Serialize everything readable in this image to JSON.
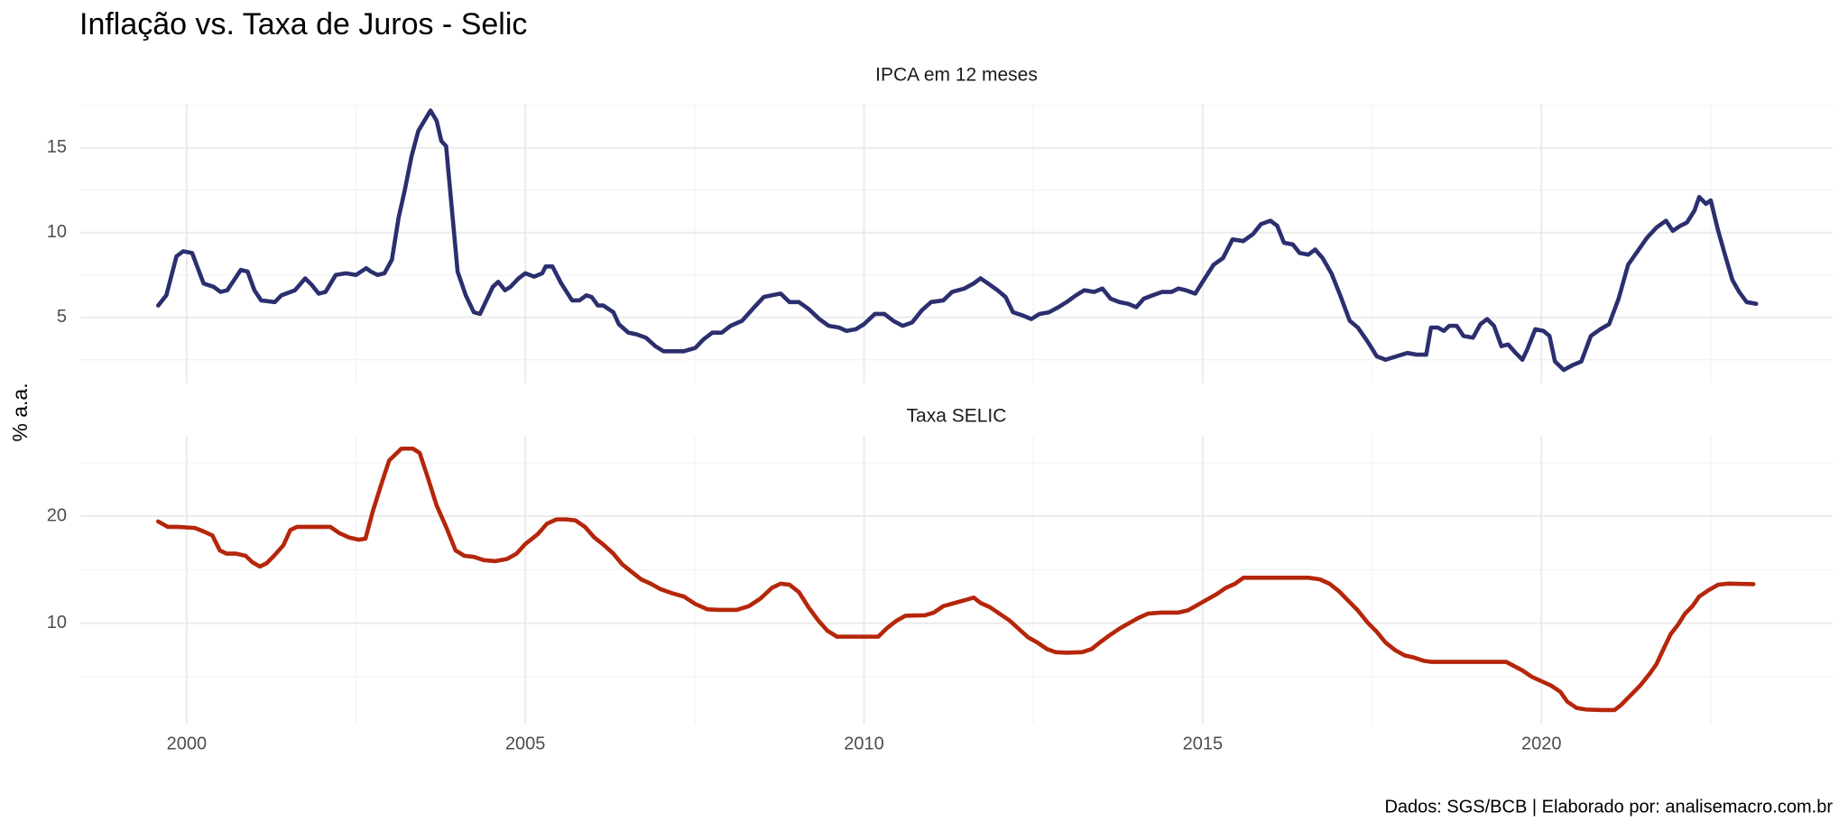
{
  "title": "Inflação vs. Taxa de Juros - Selic",
  "ylabel": "% a.a.",
  "caption": "Dados: SGS/BCB | Elaborado por: analisemacro.com.br",
  "chart_data": [
    {
      "type": "line",
      "title": "IPCA em 12 meses",
      "color": "#2b2f6e",
      "grid": true,
      "xlim": [
        1998.43,
        2024.3
      ],
      "xticks": [
        2000,
        2005,
        2010,
        2015,
        2020
      ],
      "ylim": [
        1.1,
        17.6
      ],
      "yticks": [
        5,
        10,
        15
      ],
      "x": [
        1999.58,
        1999.7,
        1999.85,
        1999.95,
        2000.08,
        2000.25,
        2000.4,
        2000.5,
        2000.6,
        2000.8,
        2000.9,
        2001.0,
        2001.1,
        2001.3,
        2001.4,
        2001.6,
        2001.75,
        2001.85,
        2001.95,
        2002.05,
        2002.2,
        2002.35,
        2002.5,
        2002.65,
        2002.72,
        2002.82,
        2002.92,
        2003.03,
        2003.13,
        2003.22,
        2003.32,
        2003.42,
        2003.51,
        2003.6,
        2003.69,
        2003.76,
        2003.83,
        2004.0,
        2004.12,
        2004.24,
        2004.33,
        2004.52,
        2004.6,
        2004.7,
        2004.78,
        2004.9,
        2005.0,
        2005.13,
        2005.25,
        2005.3,
        2005.4,
        2005.53,
        2005.69,
        2005.8,
        2005.9,
        2005.98,
        2006.07,
        2006.15,
        2006.3,
        2006.38,
        2006.52,
        2006.64,
        2006.78,
        2006.92,
        2007.04,
        2007.16,
        2007.34,
        2007.51,
        2007.63,
        2007.76,
        2007.9,
        2008.03,
        2008.2,
        2008.38,
        2008.52,
        2008.64,
        2008.77,
        2008.9,
        2009.04,
        2009.18,
        2009.34,
        2009.48,
        2009.63,
        2009.74,
        2009.88,
        2010.0,
        2010.16,
        2010.3,
        2010.43,
        2010.57,
        2010.71,
        2010.85,
        2010.99,
        2011.17,
        2011.3,
        2011.48,
        2011.62,
        2011.72,
        2011.83,
        2011.97,
        2012.09,
        2012.2,
        2012.35,
        2012.47,
        2012.59,
        2012.73,
        2012.87,
        2012.99,
        2013.13,
        2013.25,
        2013.4,
        2013.52,
        2013.64,
        2013.77,
        2013.9,
        2014.02,
        2014.13,
        2014.26,
        2014.4,
        2014.54,
        2014.64,
        2014.75,
        2014.89,
        2015.0,
        2015.16,
        2015.3,
        2015.44,
        2015.6,
        2015.74,
        2015.86,
        2016.0,
        2016.1,
        2016.2,
        2016.33,
        2016.43,
        2016.56,
        2016.66,
        2016.77,
        2016.9,
        2017.03,
        2017.17,
        2017.29,
        2017.43,
        2017.57,
        2017.7,
        2017.86,
        2018.02,
        2018.16,
        2018.3,
        2018.37,
        2018.47,
        2018.56,
        2018.64,
        2018.75,
        2018.85,
        2018.99,
        2019.1,
        2019.2,
        2019.3,
        2019.41,
        2019.51,
        2019.62,
        2019.72,
        2019.79,
        2019.91,
        2020.03,
        2020.12,
        2020.2,
        2020.33,
        2020.47,
        2020.59,
        2020.73,
        2020.87,
        2021.0,
        2021.14,
        2021.28,
        2021.42,
        2021.56,
        2021.7,
        2021.84,
        2021.94,
        2022.05,
        2022.15,
        2022.26,
        2022.33,
        2022.43,
        2022.5,
        2022.61,
        2022.71,
        2022.82,
        2022.92,
        2023.03,
        2023.17
      ],
      "values": [
        5.7,
        6.3,
        8.6,
        8.9,
        8.8,
        7.0,
        6.8,
        6.5,
        6.6,
        7.8,
        7.7,
        6.6,
        6.0,
        5.9,
        6.3,
        6.6,
        7.3,
        6.9,
        6.4,
        6.5,
        7.5,
        7.6,
        7.5,
        7.9,
        7.7,
        7.5,
        7.6,
        8.4,
        10.9,
        12.5,
        14.5,
        16.0,
        16.6,
        17.2,
        16.6,
        15.4,
        15.1,
        7.7,
        6.3,
        5.3,
        5.2,
        6.8,
        7.1,
        6.6,
        6.8,
        7.3,
        7.6,
        7.4,
        7.6,
        8.0,
        8.0,
        7.0,
        6.0,
        6.0,
        6.3,
        6.2,
        5.7,
        5.7,
        5.3,
        4.6,
        4.1,
        4.0,
        3.8,
        3.3,
        3.0,
        3.0,
        3.0,
        3.2,
        3.7,
        4.1,
        4.1,
        4.5,
        4.8,
        5.6,
        6.2,
        6.3,
        6.4,
        5.9,
        5.9,
        5.5,
        4.9,
        4.5,
        4.4,
        4.2,
        4.3,
        4.6,
        5.2,
        5.2,
        4.8,
        4.5,
        4.7,
        5.4,
        5.9,
        6.0,
        6.5,
        6.7,
        7.0,
        7.3,
        7.0,
        6.6,
        6.2,
        5.3,
        5.1,
        4.9,
        5.2,
        5.3,
        5.6,
        5.9,
        6.3,
        6.6,
        6.5,
        6.7,
        6.1,
        5.9,
        5.8,
        5.6,
        6.1,
        6.3,
        6.5,
        6.5,
        6.7,
        6.6,
        6.4,
        7.1,
        8.1,
        8.5,
        9.6,
        9.5,
        9.9,
        10.5,
        10.7,
        10.4,
        9.4,
        9.3,
        8.8,
        8.7,
        9.0,
        8.5,
        7.6,
        6.3,
        4.8,
        4.4,
        3.6,
        2.7,
        2.5,
        2.7,
        2.9,
        2.8,
        2.8,
        4.4,
        4.4,
        4.2,
        4.5,
        4.5,
        3.9,
        3.8,
        4.6,
        4.9,
        4.5,
        3.3,
        3.4,
        2.9,
        2.5,
        3.1,
        4.3,
        4.2,
        3.9,
        2.4,
        1.9,
        2.2,
        2.4,
        3.9,
        4.3,
        4.6,
        6.1,
        8.1,
        8.9,
        9.7,
        10.3,
        10.7,
        10.1,
        10.4,
        10.6,
        11.3,
        12.1,
        11.7,
        11.9,
        10.1,
        8.7,
        7.2,
        6.5,
        5.9,
        5.8
      ]
    },
    {
      "type": "line",
      "title": "Taxa SELIC",
      "color": "#b5260a",
      "grid": true,
      "xlim": [
        1998.43,
        2024.3
      ],
      "xticks": [
        2000,
        2005,
        2010,
        2015,
        2020
      ],
      "ylim": [
        0.55,
        27.5
      ],
      "yticks": [
        10,
        20
      ],
      "x": [
        1999.58,
        1999.72,
        1999.86,
        2000.12,
        2000.24,
        2000.38,
        2000.49,
        2000.59,
        2000.73,
        2000.87,
        2000.97,
        2001.08,
        2001.18,
        2001.29,
        2001.43,
        2001.53,
        2001.63,
        2001.95,
        2002.12,
        2002.26,
        2002.4,
        2002.54,
        2002.64,
        2002.75,
        2002.89,
        2002.99,
        2003.17,
        2003.34,
        2003.44,
        2003.55,
        2003.69,
        2003.83,
        2003.97,
        2004.1,
        2004.24,
        2004.38,
        2004.56,
        2004.73,
        2004.87,
        2005.0,
        2005.18,
        2005.32,
        2005.46,
        2005.6,
        2005.74,
        2005.88,
        2006.02,
        2006.16,
        2006.3,
        2006.43,
        2006.57,
        2006.71,
        2006.85,
        2006.99,
        2007.17,
        2007.34,
        2007.51,
        2007.69,
        2007.86,
        2008.12,
        2008.3,
        2008.47,
        2008.64,
        2008.77,
        2008.9,
        2009.04,
        2009.18,
        2009.32,
        2009.46,
        2009.6,
        2009.95,
        2010.21,
        2010.33,
        2010.47,
        2010.61,
        2010.9,
        2011.03,
        2011.17,
        2011.34,
        2011.51,
        2011.62,
        2011.72,
        2011.86,
        2012.0,
        2012.14,
        2012.28,
        2012.42,
        2012.56,
        2012.7,
        2012.83,
        2012.99,
        2013.22,
        2013.36,
        2013.5,
        2013.63,
        2013.77,
        2013.91,
        2014.05,
        2014.19,
        2014.38,
        2014.64,
        2014.78,
        2014.92,
        2015.06,
        2015.2,
        2015.34,
        2015.48,
        2015.6,
        2016.03,
        2016.56,
        2016.73,
        2016.87,
        2017.01,
        2017.15,
        2017.29,
        2017.43,
        2017.57,
        2017.7,
        2017.84,
        2017.98,
        2018.12,
        2018.26,
        2018.38,
        2018.64,
        2019.17,
        2019.48,
        2019.6,
        2019.72,
        2019.86,
        2020.0,
        2020.14,
        2020.28,
        2020.38,
        2020.52,
        2020.66,
        2020.9,
        2021.08,
        2021.18,
        2021.32,
        2021.46,
        2021.6,
        2021.7,
        2021.81,
        2021.91,
        2022.02,
        2022.12,
        2022.23,
        2022.33,
        2022.47,
        2022.61,
        2022.75,
        2023.13
      ],
      "values": [
        19.5,
        19.0,
        19.0,
        18.9,
        18.6,
        18.2,
        16.8,
        16.5,
        16.5,
        16.3,
        15.7,
        15.3,
        15.6,
        16.3,
        17.3,
        18.7,
        19.0,
        19.0,
        19.0,
        18.4,
        18.0,
        17.8,
        17.9,
        20.5,
        23.3,
        25.2,
        26.3,
        26.3,
        25.9,
        23.8,
        21.0,
        19.0,
        16.8,
        16.3,
        16.2,
        15.9,
        15.8,
        16.0,
        16.5,
        17.4,
        18.3,
        19.3,
        19.7,
        19.7,
        19.6,
        19.0,
        18.0,
        17.3,
        16.5,
        15.5,
        14.8,
        14.1,
        13.7,
        13.2,
        12.8,
        12.5,
        11.8,
        11.3,
        11.25,
        11.25,
        11.6,
        12.3,
        13.3,
        13.7,
        13.6,
        12.9,
        11.5,
        10.3,
        9.3,
        8.75,
        8.75,
        8.75,
        9.5,
        10.2,
        10.7,
        10.75,
        11.0,
        11.6,
        11.9,
        12.2,
        12.4,
        11.9,
        11.5,
        10.9,
        10.3,
        9.5,
        8.7,
        8.2,
        7.6,
        7.3,
        7.25,
        7.3,
        7.6,
        8.3,
        8.9,
        9.5,
        10.0,
        10.5,
        10.9,
        11.0,
        11.0,
        11.2,
        11.7,
        12.2,
        12.7,
        13.3,
        13.7,
        14.25,
        14.25,
        14.25,
        14.1,
        13.7,
        13.0,
        12.1,
        11.2,
        10.1,
        9.2,
        8.2,
        7.5,
        7.0,
        6.8,
        6.5,
        6.4,
        6.4,
        6.4,
        6.4,
        6.0,
        5.6,
        5.0,
        4.6,
        4.2,
        3.6,
        2.7,
        2.1,
        1.95,
        1.9,
        1.9,
        2.4,
        3.3,
        4.2,
        5.3,
        6.2,
        7.7,
        9.0,
        9.9,
        10.9,
        11.6,
        12.5,
        13.1,
        13.6,
        13.7,
        13.65
      ]
    }
  ]
}
